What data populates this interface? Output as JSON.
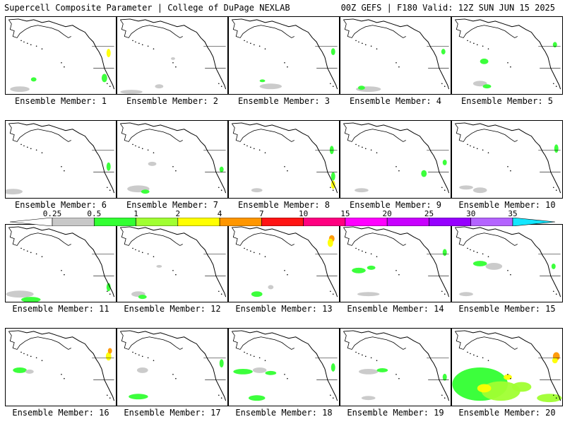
{
  "header": {
    "left": "Supercell Composite Parameter | College of DuPage NEXLAB",
    "right": "00Z GEFS | F180 Valid: 12Z SUN JUN 15 2025"
  },
  "members": [
    {
      "label": "Ensemble Member: 1"
    },
    {
      "label": "Ensemble Member: 2"
    },
    {
      "label": "Ensemble Member: 3"
    },
    {
      "label": "Ensemble Member: 4"
    },
    {
      "label": "Ensemble Member: 5"
    },
    {
      "label": "Ensemble Member: 6"
    },
    {
      "label": "Ensemble Member: 7"
    },
    {
      "label": "Ensemble Member: 8"
    },
    {
      "label": "Ensemble Member: 9"
    },
    {
      "label": "Ensemble Member: 10"
    },
    {
      "label": "Ensemble Member: 11"
    },
    {
      "label": "Ensemble Member: 12"
    },
    {
      "label": "Ensemble Member: 13"
    },
    {
      "label": "Ensemble Member: 14"
    },
    {
      "label": "Ensemble Member: 15"
    },
    {
      "label": "Ensemble Member: 16"
    },
    {
      "label": "Ensemble Member: 17"
    },
    {
      "label": "Ensemble Member: 18"
    },
    {
      "label": "Ensemble Member: 19"
    },
    {
      "label": "Ensemble Member: 20"
    }
  ],
  "colorbar": {
    "ticks": [
      "0.25",
      "0.5",
      "1",
      "2",
      "4",
      "7",
      "10",
      "15",
      "20",
      "25",
      "30",
      "35"
    ],
    "colors": [
      "#ffffff",
      "#c8c8c8",
      "#32ff32",
      "#a0ff32",
      "#ffff00",
      "#ff9600",
      "#ff1414",
      "#ff0080",
      "#ff00ff",
      "#c800ff",
      "#9600ff",
      "#b464ff",
      "#14e6ff"
    ]
  },
  "colors": {
    "land_outline": "#000000",
    "background": "#ffffff"
  }
}
